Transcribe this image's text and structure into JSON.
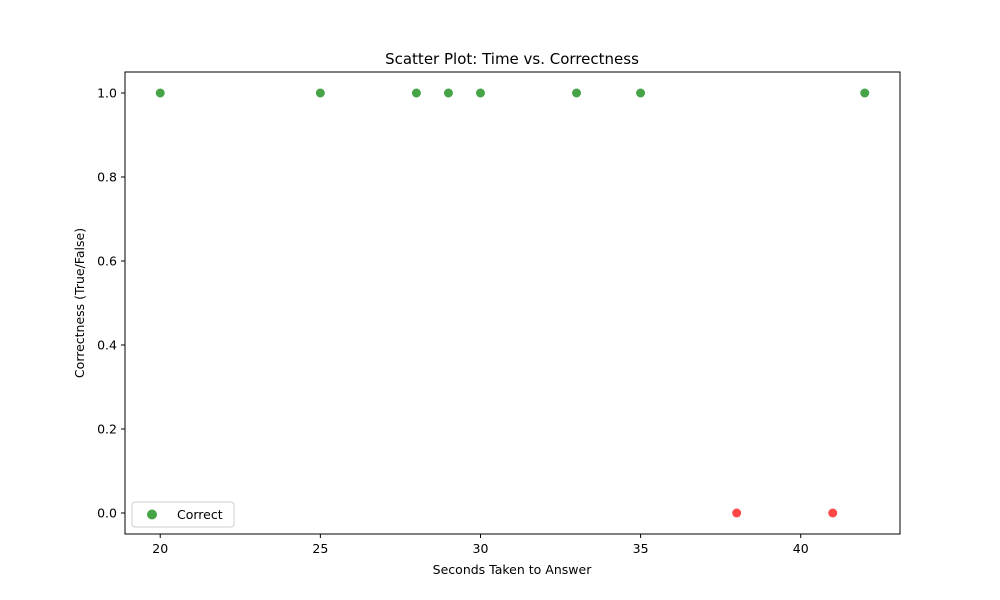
{
  "chart_data": {
    "type": "scatter",
    "title": "Scatter Plot: Time vs. Correctness",
    "xlabel": "Seconds Taken to Answer",
    "ylabel": "Correctness (True/False)",
    "xlim": [
      18.9,
      43.1
    ],
    "ylim": [
      -0.05,
      1.05
    ],
    "xticks": [
      20,
      25,
      30,
      35,
      40
    ],
    "xtick_labels": [
      "20",
      "25",
      "30",
      "35",
      "40"
    ],
    "yticks": [
      0.0,
      0.2,
      0.4,
      0.6,
      0.8,
      1.0
    ],
    "ytick_labels": [
      "0.0",
      "0.2",
      "0.4",
      "0.6",
      "0.8",
      "1.0"
    ],
    "grid": false,
    "legend_position": "lower-left",
    "series": [
      {
        "name": "Correct",
        "color": "#008000",
        "points": [
          {
            "x": 20,
            "y": 1
          },
          {
            "x": 25,
            "y": 1
          },
          {
            "x": 28,
            "y": 1
          },
          {
            "x": 29,
            "y": 1
          },
          {
            "x": 30,
            "y": 1
          },
          {
            "x": 33,
            "y": 1
          },
          {
            "x": 35,
            "y": 1
          },
          {
            "x": 42,
            "y": 1
          }
        ]
      },
      {
        "name": "",
        "color": "#ff0000",
        "points": [
          {
            "x": 38,
            "y": 0
          },
          {
            "x": 41,
            "y": 0
          }
        ]
      }
    ]
  }
}
